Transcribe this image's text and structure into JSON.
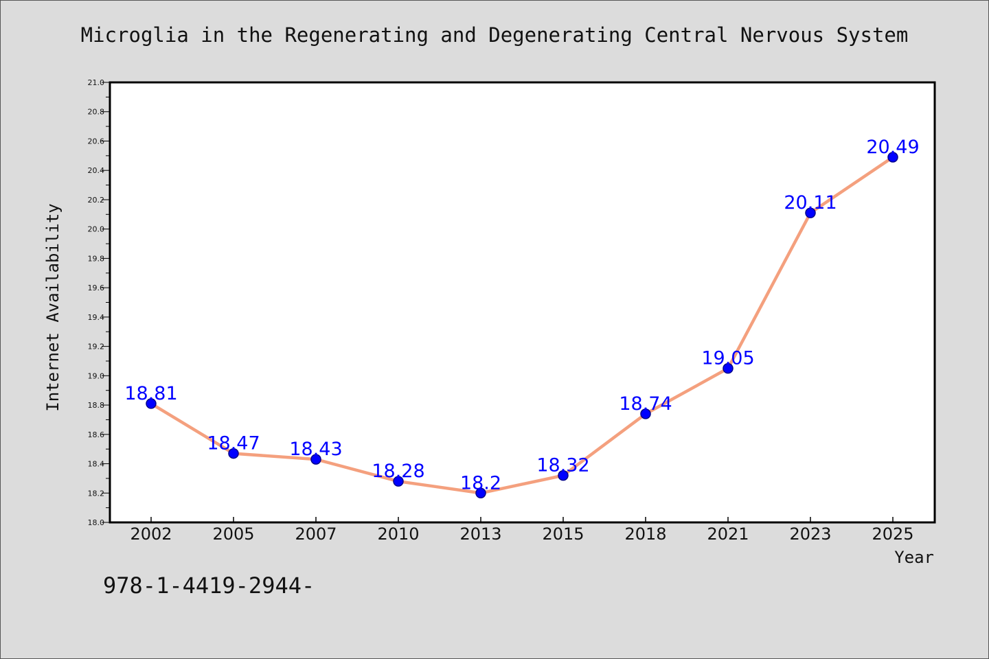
{
  "colors": {
    "background": "#dcdcdc",
    "plot_background": "#ffffff",
    "line": "#f4a07e",
    "marker": "#0000ff",
    "marker_edge": "#00008b",
    "data_label": "#0000ff"
  },
  "footer_text": "978-1-4419-2944-",
  "chart_data": {
    "type": "line",
    "title": "Microglia in the Regenerating and Degenerating Central Nervous System",
    "xlabel": "Year",
    "ylabel": "Internet Availability",
    "categories": [
      "2002",
      "2005",
      "2007",
      "2010",
      "2013",
      "2015",
      "2018",
      "2021",
      "2023",
      "2025"
    ],
    "values": [
      18.81,
      18.47,
      18.43,
      18.28,
      18.2,
      18.32,
      18.74,
      19.05,
      20.11,
      20.49
    ],
    "data_labels": [
      "18.81",
      "18.47",
      "18.43",
      "18.28",
      "18.2",
      "18.32",
      "18.74",
      "19.05",
      "20.11",
      "20.49"
    ],
    "ylim": [
      18.0,
      21.0
    ],
    "yticks": [
      "18.0",
      "18.2",
      "18.4",
      "18.6",
      "18.8",
      "19.0",
      "19.2",
      "19.4",
      "19.6",
      "19.8",
      "20.0",
      "20.2",
      "20.4",
      "20.6",
      "20.8",
      "21.0"
    ],
    "grid": false,
    "legend": "none"
  }
}
